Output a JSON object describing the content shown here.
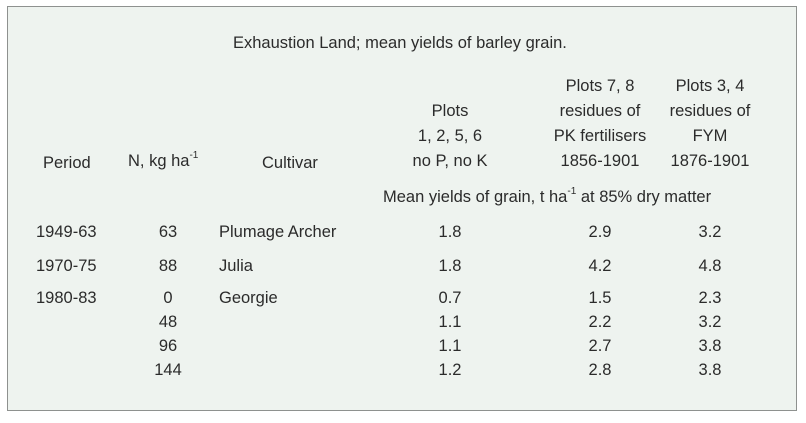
{
  "title": "Exhaustion Land; mean yields of barley grain.",
  "headers": {
    "period": "Period",
    "n_rate_prefix": "N, kg ha",
    "n_rate_sup": "-1",
    "cultivar": "Cultivar",
    "col1": [
      "Plots",
      "1, 2, 5, 6",
      "no P, no K"
    ],
    "col2": [
      "Plots 7, 8",
      "residues of",
      "PK fertilisers",
      "1856-1901"
    ],
    "col3": [
      "Plots 3, 4",
      "residues of",
      "FYM",
      "1876-1901"
    ],
    "subheader_prefix": "Mean yields of grain, t ha",
    "subheader_sup": "-1",
    "subheader_suffix": " at 85% dry matter"
  },
  "rows": [
    {
      "period": "1949-63",
      "n": "63",
      "cultivar": "Plumage Archer",
      "v1": "1.8",
      "v2": "2.9",
      "v3": "3.2"
    },
    {
      "period": "1970-75",
      "n": "88",
      "cultivar": "Julia",
      "v1": "1.8",
      "v2": "4.2",
      "v3": "4.8"
    },
    {
      "period": "1980-83",
      "n": "0",
      "cultivar": "Georgie",
      "v1": "0.7",
      "v2": "1.5",
      "v3": "2.3"
    },
    {
      "period": "",
      "n": "48",
      "cultivar": "",
      "v1": "1.1",
      "v2": "2.2",
      "v3": "3.2"
    },
    {
      "period": "",
      "n": "96",
      "cultivar": "",
      "v1": "1.1",
      "v2": "2.7",
      "v3": "3.8"
    },
    {
      "period": "",
      "n": "144",
      "cultivar": "",
      "v1": "1.2",
      "v2": "2.8",
      "v3": "3.8"
    }
  ]
}
